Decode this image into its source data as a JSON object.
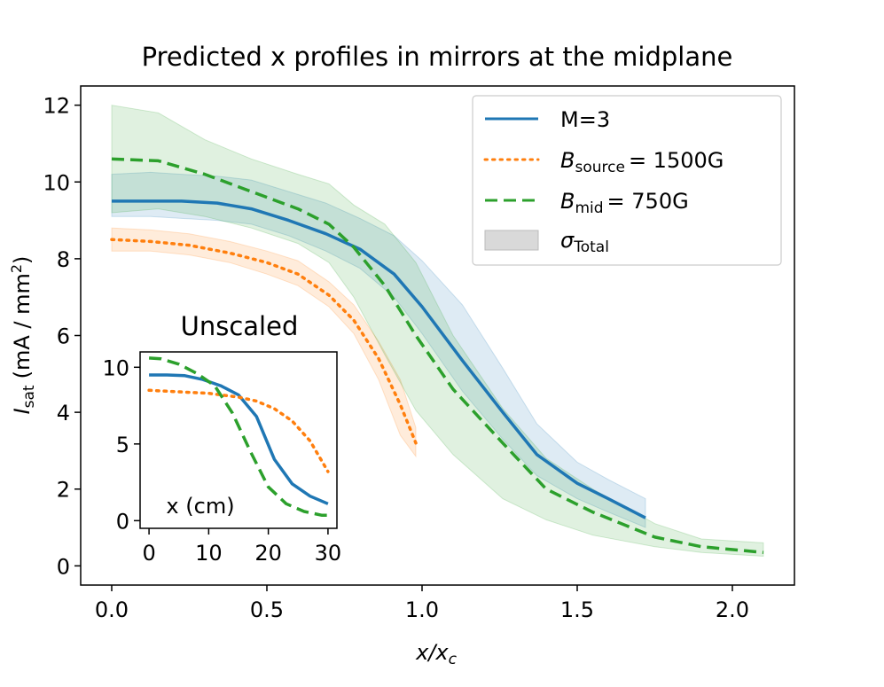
{
  "chart_data": [
    {
      "type": "line",
      "title": "Predicted x profiles in mirrors at the midplane",
      "xlabel_var": "x/x",
      "xlabel_sub": "c",
      "ylabel_main": "I",
      "ylabel_sub": "sat",
      "ylabel_units": "(mA / mm",
      "ylabel_units_sup": "2",
      "ylabel_units_close": ")",
      "xlim": [
        -0.1,
        2.2
      ],
      "ylim": [
        -0.5,
        12.5
      ],
      "xticks": [
        0.0,
        0.5,
        1.0,
        1.5,
        2.0
      ],
      "xtick_labels": [
        "0.0",
        "0.5",
        "1.0",
        "1.5",
        "2.0"
      ],
      "yticks": [
        0,
        2,
        4,
        6,
        8,
        10,
        12
      ],
      "ytick_labels": [
        "0",
        "2",
        "4",
        "6",
        "8",
        "10",
        "12"
      ],
      "legend_position": "top-right",
      "series": [
        {
          "name": "M=3",
          "color": "#1f77b4",
          "style": "solid",
          "x": [
            0.0,
            0.125,
            0.225,
            0.34,
            0.45,
            0.57,
            0.69,
            0.8,
            0.91,
            1.0,
            1.13,
            1.26,
            1.37,
            1.5,
            1.6,
            1.72
          ],
          "y": [
            9.5,
            9.5,
            9.5,
            9.45,
            9.3,
            9.0,
            8.65,
            8.25,
            7.6,
            6.75,
            5.35,
            4.0,
            2.9,
            2.15,
            1.75,
            1.25
          ],
          "lower": [
            9.1,
            9.1,
            9.05,
            9.0,
            8.9,
            8.6,
            8.2,
            7.75,
            7.0,
            6.05,
            4.55,
            3.3,
            2.35,
            1.75,
            1.4,
            1.0
          ],
          "upper": [
            10.2,
            10.25,
            10.2,
            10.15,
            10.05,
            9.75,
            9.45,
            9.05,
            8.6,
            7.95,
            6.8,
            5.15,
            3.7,
            2.7,
            2.25,
            1.75
          ]
        },
        {
          "name_var": "B",
          "name_sub": "source",
          "name_rest": "= 1500G",
          "color": "#ff7f0e",
          "style": "dotted",
          "x": [
            0.0,
            0.125,
            0.25,
            0.38,
            0.5,
            0.6,
            0.7,
            0.78,
            0.86,
            0.93,
            0.98
          ],
          "y": [
            8.5,
            8.45,
            8.35,
            8.15,
            7.9,
            7.6,
            7.05,
            6.4,
            5.4,
            4.2,
            3.2
          ],
          "lower": [
            8.2,
            8.2,
            8.1,
            7.9,
            7.6,
            7.3,
            6.75,
            6.05,
            4.85,
            3.4,
            2.85
          ],
          "upper": [
            8.8,
            8.75,
            8.65,
            8.45,
            8.2,
            7.95,
            7.4,
            6.8,
            5.85,
            4.85,
            3.6
          ]
        },
        {
          "name_var": "B",
          "name_sub": "mid",
          "name_rest": "= 750G",
          "color": "#2ca02c",
          "style": "dashed",
          "x": [
            0.0,
            0.15,
            0.3,
            0.45,
            0.6,
            0.7,
            0.78,
            0.88,
            0.98,
            1.1,
            1.26,
            1.4,
            1.55,
            1.75,
            1.9,
            2.1
          ],
          "y": [
            10.6,
            10.55,
            10.2,
            9.75,
            9.3,
            8.9,
            8.3,
            7.3,
            6.0,
            4.6,
            3.2,
            2.0,
            1.4,
            0.75,
            0.5,
            0.35
          ],
          "lower": [
            9.2,
            9.3,
            9.1,
            8.8,
            8.4,
            7.9,
            7.0,
            5.5,
            4.05,
            2.9,
            1.75,
            1.2,
            0.8,
            0.5,
            0.35,
            0.25
          ],
          "upper": [
            12.0,
            11.8,
            11.1,
            10.6,
            10.2,
            9.95,
            9.4,
            8.9,
            7.9,
            6.0,
            4.1,
            2.8,
            2.0,
            1.1,
            0.7,
            0.6
          ]
        }
      ],
      "legend_band_label_var": "σ",
      "legend_band_label_sub": "Total",
      "legend_band_color": "#d9d9d9"
    },
    {
      "type": "line",
      "title": "Unscaled",
      "xlabel": "x (cm)",
      "xlim": [
        -1.5,
        31.5
      ],
      "ylim": [
        -0.5,
        11.0
      ],
      "xticks": [
        0,
        10,
        20,
        30
      ],
      "xtick_labels": [
        "0",
        "10",
        "20",
        "30"
      ],
      "yticks": [
        0,
        5,
        10
      ],
      "ytick_labels": [
        "0",
        "5",
        "10"
      ],
      "series": [
        {
          "name": "M=3",
          "color": "#1f77b4",
          "style": "solid",
          "x": [
            0,
            3,
            6,
            9,
            12,
            15,
            18,
            21,
            24,
            27,
            30
          ],
          "y": [
            9.5,
            9.5,
            9.45,
            9.2,
            8.8,
            8.2,
            6.8,
            4.0,
            2.4,
            1.6,
            1.1
          ]
        },
        {
          "name": "B_source = 1500G",
          "color": "#ff7f0e",
          "style": "dotted",
          "x": [
            0,
            5,
            10,
            15,
            18,
            21,
            24,
            27,
            30
          ],
          "y": [
            8.5,
            8.4,
            8.3,
            8.05,
            7.8,
            7.3,
            6.5,
            5.2,
            3.2
          ]
        },
        {
          "name": "B_mid = 750G",
          "color": "#2ca02c",
          "style": "dashed",
          "x": [
            0,
            2,
            5,
            8,
            11,
            14,
            17,
            20,
            23,
            26,
            29,
            30
          ],
          "y": [
            10.6,
            10.55,
            10.2,
            9.6,
            8.8,
            7.0,
            4.5,
            2.2,
            1.1,
            0.6,
            0.35,
            0.35
          ]
        }
      ]
    }
  ]
}
